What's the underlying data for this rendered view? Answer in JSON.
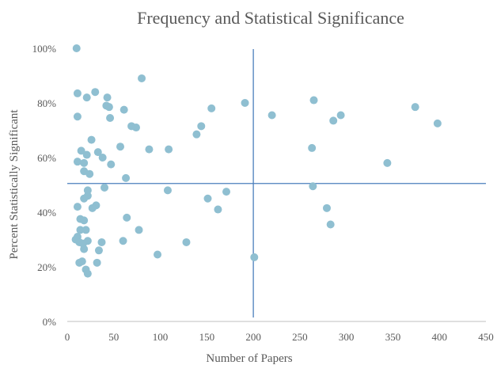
{
  "chart_data": {
    "type": "scatter",
    "title": "Frequency and Statistical Significance",
    "xlabel": "Number of Papers",
    "ylabel": "Percent Statistically Significant",
    "xlim": [
      0,
      450
    ],
    "ylim": [
      0,
      100
    ],
    "x_ticks": [
      0,
      50,
      100,
      150,
      200,
      250,
      300,
      350,
      400,
      450
    ],
    "x_tick_labels": [
      "0",
      "50",
      "100",
      "150",
      "200",
      "250",
      "300",
      "350",
      "400",
      "450"
    ],
    "y_ticks": [
      0,
      20,
      40,
      60,
      80,
      100
    ],
    "y_tick_labels": [
      "0%",
      "20%",
      "40%",
      "60%",
      "80%",
      "100%"
    ],
    "grid": false,
    "reference_lines": {
      "vertical_x": 200,
      "horizontal_y": 50.5
    },
    "colors": {
      "points": "#8fbfd1",
      "reference_lines": "#4a7ebb",
      "axis": "#bfbfbf",
      "text": "#595959"
    },
    "points": [
      {
        "x": 10,
        "y": 100
      },
      {
        "x": 80,
        "y": 89
      },
      {
        "x": 11,
        "y": 83.5
      },
      {
        "x": 30,
        "y": 84
      },
      {
        "x": 21,
        "y": 82
      },
      {
        "x": 43,
        "y": 82
      },
      {
        "x": 265,
        "y": 81
      },
      {
        "x": 191,
        "y": 80
      },
      {
        "x": 42,
        "y": 79
      },
      {
        "x": 45,
        "y": 78.5
      },
      {
        "x": 374,
        "y": 78.5
      },
      {
        "x": 155,
        "y": 78
      },
      {
        "x": 61,
        "y": 77.5
      },
      {
        "x": 220,
        "y": 75.5
      },
      {
        "x": 294,
        "y": 75.5
      },
      {
        "x": 11,
        "y": 75
      },
      {
        "x": 46,
        "y": 74.5
      },
      {
        "x": 286,
        "y": 73.5
      },
      {
        "x": 398,
        "y": 72.5
      },
      {
        "x": 144,
        "y": 71.5
      },
      {
        "x": 69,
        "y": 71.5
      },
      {
        "x": 74,
        "y": 71
      },
      {
        "x": 139,
        "y": 68.5
      },
      {
        "x": 26,
        "y": 66.5
      },
      {
        "x": 57,
        "y": 64
      },
      {
        "x": 263,
        "y": 63.5
      },
      {
        "x": 88,
        "y": 63
      },
      {
        "x": 109,
        "y": 63
      },
      {
        "x": 15,
        "y": 62.5
      },
      {
        "x": 33,
        "y": 62
      },
      {
        "x": 21,
        "y": 61
      },
      {
        "x": 38,
        "y": 60
      },
      {
        "x": 11,
        "y": 58.5
      },
      {
        "x": 18,
        "y": 58
      },
      {
        "x": 344,
        "y": 58
      },
      {
        "x": 47,
        "y": 57.5
      },
      {
        "x": 18,
        "y": 55
      },
      {
        "x": 24,
        "y": 54
      },
      {
        "x": 63,
        "y": 52.5
      },
      {
        "x": 264,
        "y": 49.5
      },
      {
        "x": 40,
        "y": 49
      },
      {
        "x": 22,
        "y": 48
      },
      {
        "x": 108,
        "y": 48
      },
      {
        "x": 171,
        "y": 47.5
      },
      {
        "x": 22,
        "y": 46
      },
      {
        "x": 18,
        "y": 45
      },
      {
        "x": 151,
        "y": 45
      },
      {
        "x": 31,
        "y": 42.5
      },
      {
        "x": 11,
        "y": 42
      },
      {
        "x": 27,
        "y": 41.5
      },
      {
        "x": 162,
        "y": 41
      },
      {
        "x": 279,
        "y": 41.5
      },
      {
        "x": 64,
        "y": 38
      },
      {
        "x": 14,
        "y": 37.5
      },
      {
        "x": 18,
        "y": 37
      },
      {
        "x": 283,
        "y": 35.5
      },
      {
        "x": 14,
        "y": 33.5
      },
      {
        "x": 20,
        "y": 33.5
      },
      {
        "x": 77,
        "y": 33.5
      },
      {
        "x": 9,
        "y": 30
      },
      {
        "x": 11,
        "y": 31
      },
      {
        "x": 13,
        "y": 29
      },
      {
        "x": 17,
        "y": 28.5
      },
      {
        "x": 22,
        "y": 29.5
      },
      {
        "x": 37,
        "y": 29
      },
      {
        "x": 60,
        "y": 29.5
      },
      {
        "x": 128,
        "y": 29
      },
      {
        "x": 18,
        "y": 26.5
      },
      {
        "x": 34,
        "y": 26
      },
      {
        "x": 97,
        "y": 24.5
      },
      {
        "x": 201,
        "y": 23.5
      },
      {
        "x": 13,
        "y": 21.5
      },
      {
        "x": 16,
        "y": 22
      },
      {
        "x": 32,
        "y": 21.5
      },
      {
        "x": 20,
        "y": 19
      },
      {
        "x": 22,
        "y": 17.5
      }
    ]
  }
}
